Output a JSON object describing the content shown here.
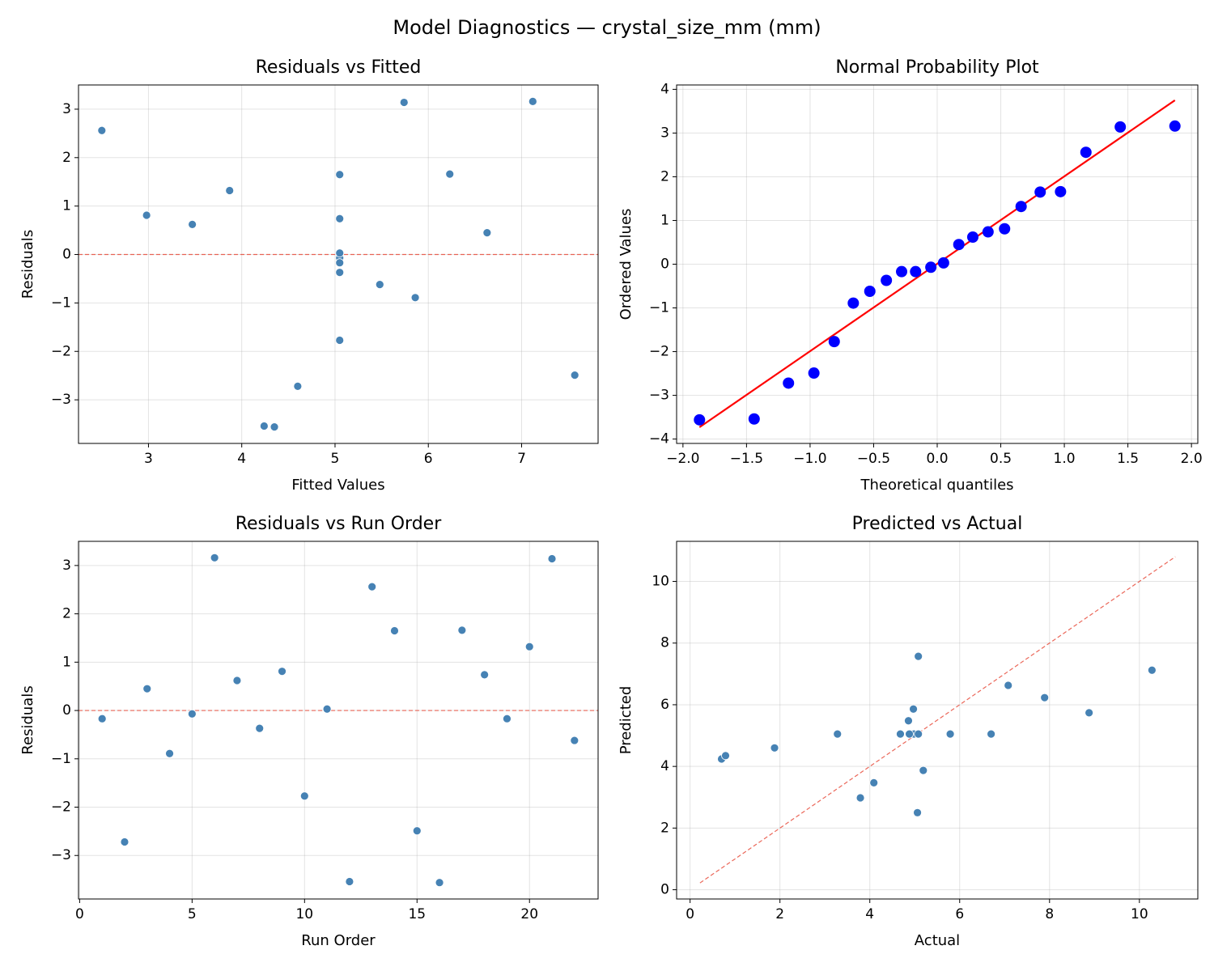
{
  "title": "Model Diagnostics — crystal_size_mm (mm)",
  "chart_data": [
    {
      "type": "scatter",
      "title": "Residuals vs Fitted",
      "x_label": "Fitted Values",
      "y_label": "Residuals",
      "x": [
        5.05,
        4.6,
        6.63,
        5.86,
        5.05,
        7.12,
        3.47,
        5.05,
        2.98,
        5.05,
        5.05,
        4.24,
        2.5,
        5.05,
        7.57,
        4.35,
        6.23,
        5.05,
        5.05,
        3.87,
        5.74,
        5.48
      ],
      "values": [
        -0.17,
        -2.72,
        0.45,
        -0.89,
        -0.07,
        3.16,
        0.62,
        -0.37,
        0.81,
        -1.77,
        0.03,
        -3.54,
        2.56,
        1.65,
        -2.49,
        -3.56,
        1.66,
        0.74,
        -0.17,
        1.32,
        3.14,
        -0.62
      ],
      "color": "#4682b4",
      "marker_size": 5,
      "reference_line": {
        "y": 0,
        "color": "#e74c3c",
        "dashed": true
      },
      "xlim": [
        2.25,
        7.82
      ],
      "xticks": [
        3,
        4,
        5,
        6,
        7
      ],
      "ylim": [
        -3.9,
        3.5
      ],
      "yticks": [
        {
          "value": -3,
          "label": "−3"
        },
        {
          "value": -2,
          "label": "−2"
        },
        {
          "value": -1,
          "label": "−1"
        },
        0,
        1,
        2,
        3
      ],
      "grid": true
    },
    {
      "type": "scatter",
      "title": "Normal Probability Plot",
      "x_label": "Theoretical quantiles",
      "y_label": "Ordered Values",
      "x": [
        -1.87,
        -1.44,
        -1.17,
        -0.97,
        -0.81,
        -0.66,
        -0.53,
        -0.4,
        -0.28,
        -0.17,
        -0.05,
        0.05,
        0.17,
        0.28,
        0.4,
        0.53,
        0.66,
        0.81,
        0.97,
        1.17,
        1.44,
        1.87
      ],
      "values": [
        -3.56,
        -3.54,
        -2.72,
        -2.49,
        -1.77,
        -0.89,
        -0.62,
        -0.37,
        -0.17,
        -0.17,
        -0.07,
        0.03,
        0.45,
        0.62,
        0.74,
        0.81,
        1.32,
        1.65,
        1.66,
        2.56,
        3.14,
        3.16
      ],
      "color": "#0000ff",
      "marker_size": 7,
      "reference_line": {
        "x": [
          -1.87,
          1.87
        ],
        "y": [
          -3.73,
          3.75
        ],
        "color": "#ff0000",
        "dashed": false
      },
      "xlim": [
        -2.05,
        2.05
      ],
      "xticks": [
        {
          "value": -2,
          "label": "−2.0"
        },
        {
          "value": -1.5,
          "label": "−1.5"
        },
        {
          "value": -1,
          "label": "−1.0"
        },
        {
          "value": -0.5,
          "label": "−0.5"
        },
        {
          "value": 0,
          "label": "0.0"
        },
        0.5,
        {
          "value": 1,
          "label": "1.0"
        },
        1.5,
        {
          "value": 2,
          "label": "2.0"
        }
      ],
      "ylim": [
        -4.1,
        4.1
      ],
      "yticks": [
        {
          "value": -4,
          "label": "−4"
        },
        {
          "value": -3,
          "label": "−3"
        },
        {
          "value": -2,
          "label": "−2"
        },
        {
          "value": -1,
          "label": "−1"
        },
        0,
        1,
        2,
        3,
        4
      ],
      "grid": true
    },
    {
      "type": "scatter",
      "title": "Residuals vs Run Order",
      "x_label": "Run Order",
      "y_label": "Residuals",
      "x": [
        1,
        2,
        3,
        4,
        5,
        6,
        7,
        8,
        9,
        10,
        11,
        12,
        13,
        14,
        15,
        16,
        17,
        18,
        19,
        20,
        21,
        22
      ],
      "values": [
        -0.17,
        -2.72,
        0.45,
        -0.89,
        -0.07,
        3.16,
        0.62,
        -0.37,
        0.81,
        -1.77,
        0.03,
        -3.54,
        2.56,
        1.65,
        -2.49,
        -3.56,
        1.66,
        0.74,
        -0.17,
        1.32,
        3.14,
        -0.62
      ],
      "color": "#4682b4",
      "marker_size": 5,
      "reference_line": {
        "y": 0,
        "color": "#e74c3c",
        "dashed": true
      },
      "xlim": [
        -0.05,
        23.05
      ],
      "xticks": [
        0,
        5,
        10,
        15,
        20
      ],
      "ylim": [
        -3.9,
        3.5
      ],
      "yticks": [
        {
          "value": -3,
          "label": "−3"
        },
        {
          "value": -2,
          "label": "−2"
        },
        {
          "value": -1,
          "label": "−1"
        },
        0,
        1,
        2,
        3
      ],
      "grid": true
    },
    {
      "type": "scatter",
      "title": "Predicted vs Actual",
      "x_label": "Actual",
      "y_label": "Predicted",
      "x": [
        4.88,
        1.88,
        7.08,
        4.97,
        4.98,
        10.28,
        4.09,
        4.68,
        3.79,
        3.28,
        5.08,
        0.7,
        5.06,
        6.7,
        5.08,
        0.79,
        7.89,
        5.79,
        4.88,
        5.19,
        8.88,
        4.86
      ],
      "values": [
        5.05,
        4.6,
        6.63,
        5.86,
        5.05,
        7.12,
        3.47,
        5.05,
        2.98,
        5.05,
        5.05,
        4.24,
        2.5,
        5.05,
        7.57,
        4.35,
        6.23,
        5.05,
        5.05,
        3.87,
        5.74,
        5.48
      ],
      "color": "#4682b4",
      "marker_size": 5,
      "reference_line": {
        "x": [
          0.22,
          10.8
        ],
        "y": [
          0.22,
          10.8
        ],
        "color": "#e74c3c",
        "dashed": true
      },
      "xlim": [
        -0.3,
        11.3
      ],
      "xticks": [
        0,
        2,
        4,
        6,
        8,
        10
      ],
      "ylim": [
        -0.3,
        11.3
      ],
      "yticks": [
        0,
        2,
        4,
        6,
        8,
        10
      ],
      "grid": true
    }
  ]
}
